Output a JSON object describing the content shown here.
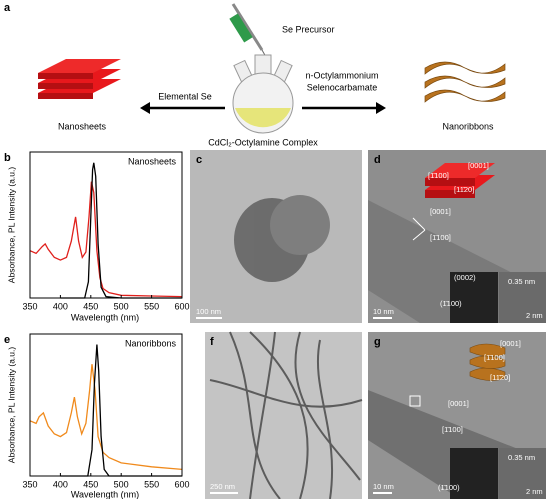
{
  "panel_labels": [
    "a",
    "b",
    "c",
    "d",
    "e",
    "f",
    "g"
  ],
  "scheme": {
    "precursor": "Se Precursor",
    "left_product": "Nanosheets",
    "left_reagent": "Elemental Se",
    "right_reagent_1": "n-Octylammonium",
    "right_reagent_2": "Selenocarbamate",
    "right_product": "Nanoribbons",
    "complex": "CdCl₂-Octylamine Complex"
  },
  "chart_data": [
    {
      "type": "line",
      "annotation": "Nanosheets",
      "xlabel": "Wavelength (nm)",
      "ylabel": "Absorbance, PL Intensity (a.u.)",
      "xlim": [
        350,
        600
      ],
      "ylim": [
        0,
        1.08
      ],
      "xticks": [
        350,
        400,
        450,
        500,
        550,
        600
      ],
      "series": [
        {
          "color": "#e0201c",
          "x": [
            350,
            360,
            370,
            375,
            380,
            390,
            400,
            410,
            418,
            425,
            430,
            436,
            442,
            447,
            451,
            455,
            460,
            465,
            470,
            480,
            500,
            550,
            600
          ],
          "values": [
            0.35,
            0.33,
            0.38,
            0.4,
            0.36,
            0.3,
            0.28,
            0.3,
            0.42,
            0.6,
            0.42,
            0.3,
            0.34,
            0.6,
            0.86,
            0.78,
            0.35,
            0.15,
            0.07,
            0.04,
            0.02,
            0.015,
            0.01
          ]
        },
        {
          "color": "#000000",
          "x": [
            400,
            440,
            446,
            450,
            453,
            455,
            458,
            462,
            467,
            475,
            500,
            600
          ],
          "values": [
            0,
            0,
            0.12,
            0.6,
            0.95,
            1.0,
            0.9,
            0.4,
            0.08,
            0.01,
            0,
            0
          ]
        }
      ]
    },
    {
      "type": "line",
      "annotation": "Nanoribbons",
      "xlabel": "Wavelength (nm)",
      "ylabel": "Absorbance, PL Intensity (a.u.)",
      "xlim": [
        350,
        600
      ],
      "ylim": [
        0,
        1.08
      ],
      "xticks": [
        350,
        400,
        450,
        500,
        550,
        600
      ],
      "series": [
        {
          "color": "#f08a1c",
          "x": [
            350,
            360,
            365,
            372,
            380,
            390,
            400,
            410,
            418,
            423,
            428,
            435,
            442,
            448,
            452,
            457,
            462,
            470,
            480,
            500,
            550,
            600
          ],
          "values": [
            0.42,
            0.4,
            0.45,
            0.48,
            0.38,
            0.32,
            0.3,
            0.33,
            0.48,
            0.6,
            0.45,
            0.32,
            0.4,
            0.65,
            0.85,
            0.65,
            0.3,
            0.18,
            0.14,
            0.1,
            0.07,
            0.05
          ]
        },
        {
          "color": "#000000",
          "x": [
            400,
            445,
            452,
            456,
            460,
            463,
            467,
            472,
            480,
            500,
            600
          ],
          "values": [
            0,
            0,
            0.2,
            0.7,
            1.0,
            0.8,
            0.3,
            0.05,
            0,
            0,
            0
          ]
        }
      ]
    }
  ],
  "images": {
    "c": {
      "scale": "100 nm"
    },
    "d": {
      "inset_dirs": [
        "[0001]",
        "[1̄100]",
        "[11̄20]"
      ],
      "dirs": [
        "[0001]",
        "[1̄100]"
      ],
      "fft": [
        "(0002)",
        "(1̄100)"
      ],
      "spacing": "0.35 nm",
      "inset_scale": "2 nm",
      "scale": "10 nm"
    },
    "f": {
      "scale": "250 nm"
    },
    "g": {
      "inset_dirs": [
        "[0001]",
        "[1̄100]",
        "[11̄20]"
      ],
      "dirs": [
        "[0001]",
        "[1̄100]"
      ],
      "fft": [
        "(1̄100)"
      ],
      "spacing": "0.35 nm",
      "inset_scale": "2 nm",
      "scale": "10 nm"
    }
  }
}
